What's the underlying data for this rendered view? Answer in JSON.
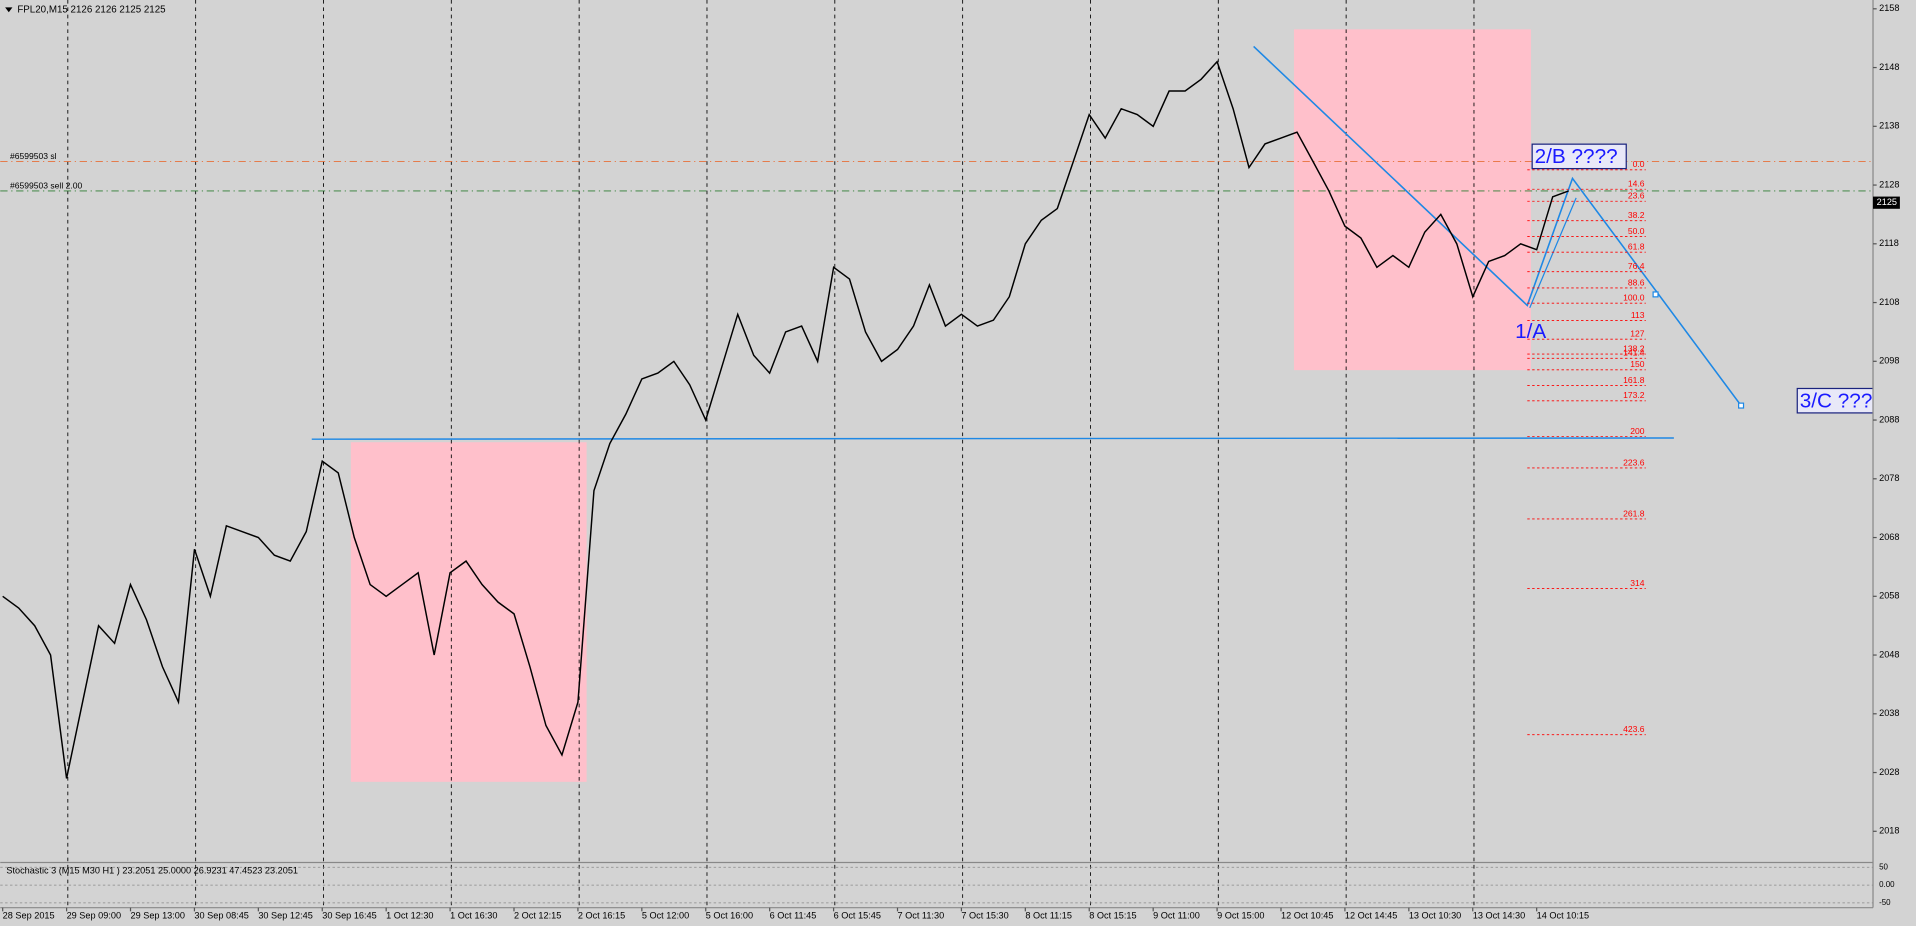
{
  "chart_data": {
    "type": "line",
    "title": "FPL20,M15  2126 2126 2125 2125",
    "categories": [
      "28 Sep 2015",
      null,
      null,
      null,
      "29 Sep 09:00",
      null,
      null,
      null,
      "29 Sep 13:00",
      null,
      null,
      null,
      "30 Sep 08:45",
      null,
      null,
      null,
      "30 Sep 12:45",
      null,
      null,
      null,
      "30 Sep 16:45",
      null,
      null,
      null,
      "1 Oct 12:30",
      null,
      null,
      null,
      "1 Oct 16:30",
      null,
      null,
      null,
      "2 Oct 12:15",
      null,
      null,
      null,
      "2 Oct 16:15",
      null,
      null,
      null,
      "5 Oct 12:00",
      null,
      null,
      null,
      "5 Oct 16:00",
      null,
      null,
      null,
      "6 Oct 11:45",
      null,
      null,
      null,
      "6 Oct 15:45",
      null,
      null,
      null,
      "7 Oct 11:30",
      null,
      null,
      null,
      "7 Oct 15:30",
      null,
      null,
      null,
      "8 Oct 11:15",
      null,
      null,
      null,
      "8 Oct 15:15",
      null,
      null,
      null,
      "9 Oct 11:00",
      null,
      null,
      null,
      "9 Oct 15:00",
      null,
      null,
      null,
      "12 Oct 10:45",
      null,
      null,
      null,
      "12 Oct 14:45",
      null,
      null,
      null,
      "13 Oct 10:30",
      null,
      null,
      null,
      "13 Oct 14:30",
      null,
      null,
      null,
      "14 Oct 10:15",
      null,
      null
    ],
    "series": [
      {
        "name": "FPL20,M15",
        "color": "#000000",
        "values": [
          2058,
          2056,
          2053,
          2048,
          2027,
          2040,
          2053,
          2050,
          2060,
          2054,
          2046,
          2040,
          2066,
          2058,
          2070,
          2069,
          2068,
          2065,
          2064,
          2069,
          2081,
          2079,
          2068,
          2060,
          2058,
          2060,
          2062,
          2048,
          2062,
          2064,
          2060,
          2057,
          2055,
          2046,
          2036,
          2031,
          2040,
          2076,
          2084,
          2089,
          2095,
          2096,
          2098,
          2094,
          2088,
          2097,
          2106,
          2099,
          2096,
          2103,
          2104,
          2098,
          2114,
          2112,
          2103,
          2098,
          2100,
          2104,
          2111,
          2104,
          2106,
          2104,
          2105,
          2109,
          2118,
          2122,
          2124,
          2132,
          2140,
          2136,
          2141,
          2140,
          2138,
          2144,
          2144,
          2146,
          2149,
          2141,
          2131,
          2135,
          2136,
          2137,
          2132,
          2127,
          2121,
          2119,
          2114,
          2116,
          2114,
          2120,
          2123,
          2118,
          2109,
          2115,
          2116,
          2118,
          2117,
          2126,
          2127
        ]
      }
    ],
    "ylim": [
      2012.9,
      2159.5
    ],
    "yticks": [
      2158,
      2148,
      2138,
      2128,
      2118,
      2108,
      2098,
      2088,
      2078,
      2068,
      2058,
      2048,
      2038,
      2028,
      2018
    ],
    "grid": true,
    "current_price": 2125,
    "orders": [
      {
        "label": "#6599503 sl",
        "price": 2132,
        "color": "#e8703a"
      },
      {
        "label": "#6599503 sell 2.00",
        "price": 2127,
        "color": "#2e7d32"
      }
    ],
    "fibonacci": {
      "high": 2130.6,
      "low": 2107.9,
      "color": "#ff0000",
      "levels": [
        {
          "value": 0,
          "label": "0.0"
        },
        14.6,
        23.6,
        38.2,
        {
          "value": 50,
          "label": "50.0"
        },
        61.8,
        76.4,
        88.6,
        {
          "value": 100,
          "label": "100.0"
        },
        113,
        127,
        138.2,
        141.4,
        150,
        161.8,
        173.2,
        200,
        223.6,
        261.8,
        314,
        423.6
      ]
    },
    "annotations": [
      "2/B ????",
      "1/A",
      "3/C ???"
    ]
  },
  "indicator": {
    "title": "Stochastic 3 (M15  M30  H1 ) 23.2051 25.0000 26.9231 47.4523 23.2051",
    "ylim": [
      -60,
      60
    ],
    "yticks": [
      50,
      {
        "value": 0,
        "label": "0.00"
      },
      -50
    ]
  }
}
